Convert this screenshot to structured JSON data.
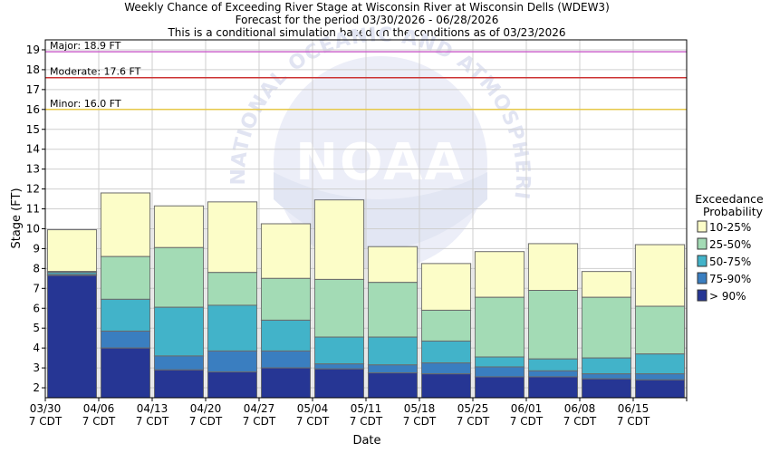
{
  "chart_data": {
    "type": "bar",
    "title_lines": [
      "Weekly Chance of Exceeding River Stage at Wisconsin River at Wisconsin Dells (WDEW3)",
      "Forecast for the period 03/30/2026 - 06/28/2026",
      "This is a conditional simulation based on the conditions as of 03/23/2026"
    ],
    "xlabel": "Date",
    "ylabel": "Stage (FT)",
    "ylim": [
      1.5,
      19.5
    ],
    "yticks": [
      2,
      3,
      4,
      5,
      6,
      7,
      8,
      9,
      10,
      11,
      12,
      13,
      14,
      15,
      16,
      17,
      18,
      19
    ],
    "x_tick_labels": [
      [
        "03/30",
        "7 CDT"
      ],
      [
        "04/06",
        "7 CDT"
      ],
      [
        "04/13",
        "7 CDT"
      ],
      [
        "04/20",
        "7 CDT"
      ],
      [
        "04/27",
        "7 CDT"
      ],
      [
        "05/04",
        "7 CDT"
      ],
      [
        "05/11",
        "7 CDT"
      ],
      [
        "05/18",
        "7 CDT"
      ],
      [
        "05/25",
        "7 CDT"
      ],
      [
        "06/01",
        "7 CDT"
      ],
      [
        "06/08",
        "7 CDT"
      ],
      [
        "06/15",
        "7 CDT"
      ]
    ],
    "thresholds": [
      {
        "label": "Major: 18.9 FT",
        "value": 18.9,
        "color": "#cc66cc"
      },
      {
        "label": "Moderate: 17.6 FT",
        "value": 17.6,
        "color": "#cc3333"
      },
      {
        "label": "Minor: 16.0 FT",
        "value": 16.0,
        "color": "#e6c84a"
      }
    ],
    "legend": {
      "title": [
        "Exceedance",
        "Probability"
      ],
      "placement": "right"
    },
    "series": [
      {
        "name": "> 90%",
        "color": "#263694",
        "values": [
          7.65,
          4.0,
          2.9,
          2.8,
          3.0,
          2.95,
          2.75,
          2.7,
          2.55,
          2.55,
          2.45,
          2.4
        ]
      },
      {
        "name": "75-90%",
        "color": "#3a7ec0",
        "values": [
          7.7,
          4.85,
          3.6,
          3.85,
          3.85,
          3.2,
          3.15,
          3.25,
          3.05,
          2.85,
          2.7,
          2.7
        ]
      },
      {
        "name": "50-75%",
        "color": "#42b3c9",
        "values": [
          7.8,
          6.45,
          6.05,
          6.15,
          5.4,
          4.55,
          4.55,
          4.35,
          3.55,
          3.45,
          3.5,
          3.7
        ]
      },
      {
        "name": "25-50%",
        "color": "#a3dbb5",
        "values": [
          7.85,
          8.6,
          9.05,
          7.8,
          7.5,
          7.45,
          7.3,
          5.9,
          6.55,
          6.9,
          6.55,
          6.1
        ]
      },
      {
        "name": "10-25%",
        "color": "#fcfdc8",
        "values": [
          9.95,
          11.8,
          11.15,
          11.35,
          10.25,
          11.45,
          9.1,
          8.25,
          8.85,
          9.25,
          7.85,
          9.2
        ]
      }
    ],
    "watermark": {
      "logo_text": "NOAA",
      "ring_text": "NATIONAL OCEANIC AND ATMOSPHERIC ADMINISTRATION"
    }
  }
}
